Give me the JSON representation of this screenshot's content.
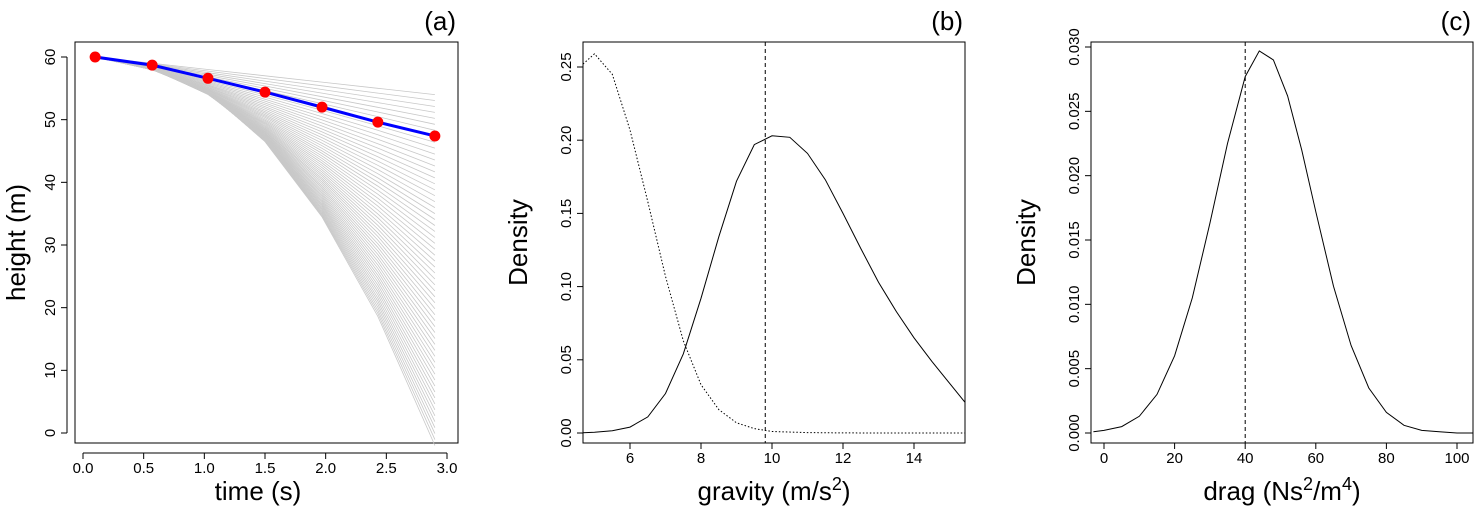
{
  "chart_data": [
    {
      "panel": "(a)",
      "type": "line",
      "xlabel": "time (s)",
      "ylabel": "height (m)",
      "xlim": [
        0,
        3
      ],
      "ylim": [
        0,
        60
      ],
      "xticks": [
        0,
        0.5,
        1,
        1.5,
        2,
        2.5,
        3
      ],
      "xtick_labels": [
        "0.0",
        "0.5",
        "1.0",
        "1.5",
        "2.0",
        "2.5",
        "3.0"
      ],
      "yticks": [
        0,
        10,
        20,
        30,
        40,
        50,
        60
      ],
      "ytick_labels": [
        "0",
        "10",
        "20",
        "30",
        "40",
        "50",
        "60"
      ],
      "grid": false,
      "ensemble": {
        "color": "#c8c8c8",
        "x": [
          0.1,
          0.57,
          1.03,
          1.5,
          1.97,
          2.43,
          2.9
        ],
        "count": 60,
        "final_height_range": [
          -2,
          54
        ]
      },
      "series": [
        {
          "color": "#0000ff",
          "style": "line",
          "x": [
            0.1,
            0.57,
            1.03,
            1.5,
            1.97,
            2.43,
            2.9
          ],
          "values": [
            60,
            58.7,
            56.6,
            54.4,
            52.0,
            49.6,
            47.4
          ]
        },
        {
          "color": "#ff0000",
          "style": "points",
          "x": [
            0.1,
            0.57,
            1.03,
            1.5,
            1.97,
            2.43,
            2.9
          ],
          "values": [
            60,
            58.7,
            56.6,
            54.4,
            52.0,
            49.6,
            47.4
          ]
        }
      ]
    },
    {
      "panel": "(b)",
      "type": "line",
      "xlabel": "gravity (m/s",
      "xlabel_sup": "2",
      "xlabel_tail": ")",
      "ylabel": "Density",
      "xlim": [
        4.5,
        15.5
      ],
      "ylim": [
        0,
        0.26
      ],
      "xticks": [
        6,
        8,
        10,
        12,
        14
      ],
      "xtick_labels": [
        "6",
        "8",
        "10",
        "12",
        "14"
      ],
      "yticks": [
        0,
        0.05,
        0.1,
        0.15,
        0.2,
        0.25
      ],
      "ytick_labels": [
        "0.00",
        "0.05",
        "0.10",
        "0.15",
        "0.20",
        "0.25"
      ],
      "grid": false,
      "vline": 9.81,
      "series": [
        {
          "style": "dotted",
          "x": [
            4.5,
            5.0,
            5.5,
            6.0,
            6.5,
            7.0,
            7.5,
            8.0,
            8.5,
            9.0,
            9.5,
            10.0,
            11.0,
            12.0,
            13.0,
            14.0,
            15.5
          ],
          "values": [
            0.252,
            0.259,
            0.245,
            0.207,
            0.158,
            0.107,
            0.063,
            0.033,
            0.016,
            0.007,
            0.003,
            0.001,
            0.0003,
            0.0001,
            0.0,
            0.0,
            0.0
          ]
        },
        {
          "style": "solid",
          "x": [
            4.5,
            5.0,
            5.5,
            6.0,
            6.5,
            7.0,
            7.5,
            8.0,
            8.5,
            9.0,
            9.5,
            10.0,
            10.5,
            11.0,
            11.5,
            12.0,
            12.5,
            13.0,
            13.5,
            14.0,
            14.5,
            15.0,
            15.5
          ],
          "values": [
            0.0002,
            0.0005,
            0.0015,
            0.004,
            0.011,
            0.027,
            0.054,
            0.092,
            0.134,
            0.172,
            0.197,
            0.203,
            0.202,
            0.191,
            0.173,
            0.15,
            0.126,
            0.103,
            0.083,
            0.065,
            0.049,
            0.034,
            0.021
          ]
        }
      ]
    },
    {
      "panel": "(c)",
      "type": "line",
      "xlabel": "drag (Ns",
      "xlabel_sup": "2",
      "xlabel_mid": "/m",
      "xlabel_sup2": "4",
      "xlabel_tail": ")",
      "ylabel": "Density",
      "xlim": [
        -3,
        105
      ],
      "ylim": [
        0,
        0.03
      ],
      "xticks": [
        0,
        20,
        40,
        60,
        80,
        100
      ],
      "xtick_labels": [
        "0",
        "20",
        "40",
        "60",
        "80",
        "100"
      ],
      "yticks": [
        0,
        0.005,
        0.01,
        0.015,
        0.02,
        0.025,
        0.03
      ],
      "ytick_labels": [
        "0.000",
        "0.005",
        "0.010",
        "0.015",
        "0.020",
        "0.025",
        "0.030"
      ],
      "grid": false,
      "vline": 40,
      "series": [
        {
          "style": "solid",
          "x": [
            -3,
            0,
            5,
            10,
            15,
            20,
            25,
            30,
            35,
            40,
            44,
            48,
            52,
            56,
            60,
            65,
            70,
            75,
            80,
            85,
            90,
            95,
            100,
            105
          ],
          "values": [
            0.0001,
            0.0002,
            0.0005,
            0.0013,
            0.003,
            0.006,
            0.0105,
            0.0163,
            0.0225,
            0.0277,
            0.0297,
            0.029,
            0.0262,
            0.022,
            0.0172,
            0.0114,
            0.0068,
            0.0035,
            0.0016,
            0.0006,
            0.0002,
            0.0001,
            0.0,
            0.0
          ]
        }
      ]
    }
  ]
}
